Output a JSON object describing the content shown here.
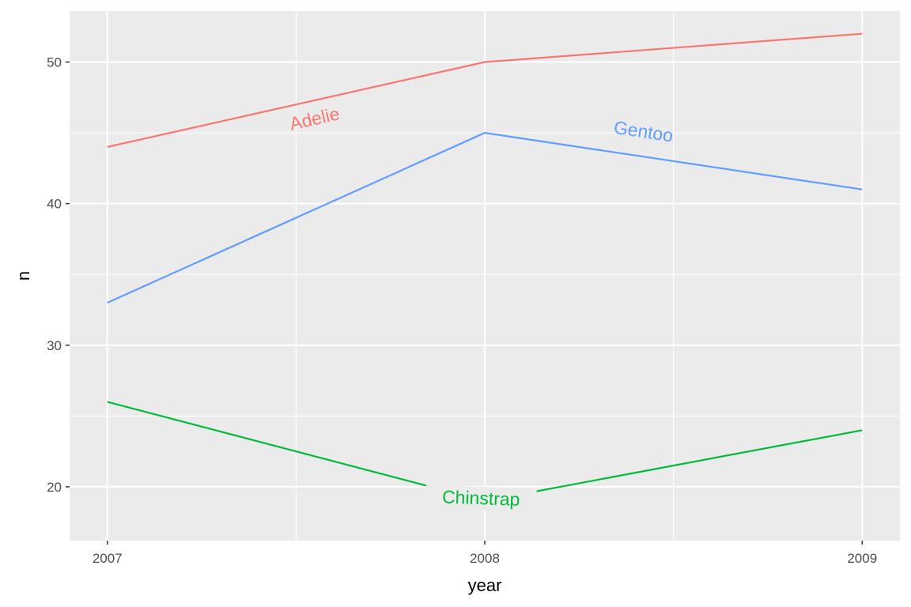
{
  "chart_data": {
    "type": "line",
    "xlabel": "year",
    "ylabel": "n",
    "x": [
      2007,
      2008,
      2009
    ],
    "xticks": [
      "2007",
      "2008",
      "2009"
    ],
    "xlim": [
      2006.9,
      2009.1
    ],
    "ylim": [
      16.2,
      53.6
    ],
    "yticks": [
      20,
      30,
      40,
      50
    ],
    "ytick_labels": [
      "20",
      "30",
      "40",
      "50"
    ],
    "grid": true,
    "legend": "none (direct labels on lines)",
    "series": [
      {
        "name": "Adelie",
        "values": [
          44,
          50,
          52
        ],
        "color": "#F8766D",
        "label_x": 2007.55,
        "label_y": 45.9
      },
      {
        "name": "Chinstrap",
        "values": [
          26,
          19,
          24
        ],
        "color": "#00BA38",
        "label_x": 2007.99,
        "label_y": 19.1
      },
      {
        "name": "Gentoo",
        "values": [
          33,
          45,
          41
        ],
        "color": "#619CFF",
        "label_x": 2008.42,
        "label_y": 45.0
      }
    ]
  }
}
